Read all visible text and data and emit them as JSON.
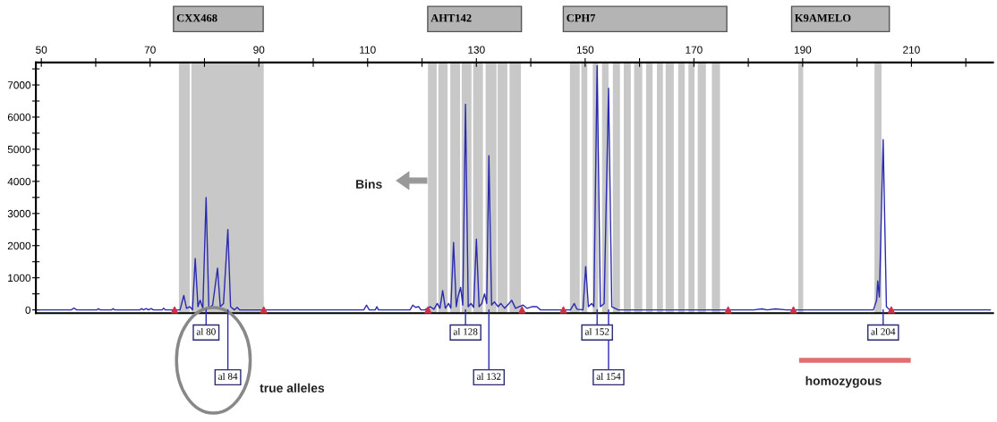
{
  "chart_data": {
    "type": "line",
    "xlim": [
      49,
      225
    ],
    "ylim": [
      -100,
      7700
    ],
    "xticks": [
      50,
      {
        "value": 60,
        "label": null
      },
      70,
      {
        "value": 80,
        "label": null
      },
      90,
      {
        "value": 100,
        "label": null
      },
      110,
      {
        "value": 120,
        "label": null
      },
      130,
      {
        "value": 140,
        "label": null
      },
      150,
      {
        "value": 160,
        "label": null
      },
      170,
      {
        "value": 180,
        "label": null
      },
      190,
      {
        "value": 200,
        "label": null
      },
      210,
      {
        "value": 220,
        "label": null
      }
    ],
    "yticks": [
      0,
      {
        "value": 500,
        "label": null
      },
      1000,
      {
        "value": 1500,
        "label": null
      },
      2000,
      {
        "value": 2500,
        "label": null
      },
      3000,
      {
        "value": 3500,
        "label": null
      },
      4000,
      {
        "value": 4500,
        "label": null
      },
      5000,
      {
        "value": 5500,
        "label": null
      },
      6000,
      {
        "value": 6500,
        "label": null
      },
      7000,
      {
        "value": 7500,
        "label": null
      }
    ],
    "grid": false,
    "legend": false,
    "series": [
      {
        "color": "#2a2ab0",
        "x": [
          49.5,
          55.5,
          56.0,
          56.5,
          60.2,
          60.5,
          60.8,
          62.9,
          63.2,
          63.5,
          68.1,
          68.4,
          68.8,
          69.3,
          69.7,
          70.2,
          70.6,
          72.2,
          72.5,
          72.8,
          75.5,
          76.2,
          76.7,
          77.3,
          77.8,
          78.3,
          78.8,
          79.2,
          79.7,
          80.3,
          80.8,
          81.5,
          82.4,
          82.9,
          83.5,
          84.3,
          84.8,
          85.5,
          86.0,
          86.5,
          109.3,
          109.8,
          110.3,
          111.4,
          111.7,
          112.0,
          117.8,
          118.3,
          118.8,
          119.4,
          119.8,
          120.5,
          121.5,
          122.2,
          122.8,
          123.3,
          123.8,
          124.3,
          124.9,
          125.3,
          125.8,
          126.3,
          126.6,
          127.1,
          127.5,
          128.0,
          128.5,
          129.0,
          129.5,
          130.0,
          130.5,
          131.0,
          131.5,
          131.9,
          132.3,
          132.8,
          133.3,
          134.0,
          134.5,
          135.2,
          136.0,
          136.5,
          137.2,
          137.8,
          138.6,
          139.3,
          140.2,
          141.1,
          141.8,
          147.3,
          148.0,
          148.5,
          149.6,
          150.1,
          150.6,
          151.2,
          151.6,
          152.2,
          152.8,
          153.5,
          154.3,
          154.9,
          155.5,
          156.1,
          181.0,
          182.5,
          183.5,
          185.0,
          187.0,
          203.0,
          203.6,
          203.8,
          204.1,
          204.8,
          205.4,
          206.0,
          224.5
        ],
        "values": [
          0,
          0,
          60,
          0,
          0,
          40,
          0,
          0,
          40,
          0,
          0,
          40,
          0,
          40,
          0,
          40,
          0,
          0,
          50,
          0,
          0,
          450,
          50,
          100,
          0,
          1600,
          100,
          300,
          50,
          3500,
          50,
          150,
          1300,
          100,
          200,
          2500,
          100,
          0,
          80,
          0,
          0,
          150,
          0,
          0,
          100,
          0,
          0,
          150,
          80,
          100,
          0,
          0,
          100,
          20,
          200,
          50,
          600,
          50,
          200,
          50,
          2100,
          100,
          400,
          700,
          150,
          6400,
          100,
          200,
          80,
          2200,
          100,
          200,
          500,
          200,
          4800,
          150,
          250,
          100,
          200,
          50,
          200,
          300,
          50,
          100,
          150,
          50,
          100,
          100,
          0,
          0,
          200,
          20,
          0,
          1350,
          100,
          200,
          100,
          7600,
          100,
          200,
          6900,
          100,
          50,
          0,
          0,
          30,
          0,
          30,
          0,
          0,
          300,
          900,
          400,
          5300,
          100,
          0,
          0
        ]
      },
      {
        "type": "scatter",
        "color": "#cc3344",
        "marker": "triangle",
        "x": [
          74.5,
          90.9,
          121.1,
          138.4,
          146.0,
          176.3,
          188.3,
          206.3
        ],
        "values": [
          0,
          0,
          0,
          0,
          0,
          0,
          0,
          0
        ]
      }
    ],
    "bands": [
      {
        "axis": "x",
        "from": 75.3,
        "to": 77.3,
        "color": "#c8c8c8"
      },
      {
        "axis": "x",
        "from": 77.6,
        "to": 90.9,
        "color": "#c8c8c8"
      },
      {
        "axis": "x",
        "from": 121.1,
        "to": 122.7,
        "color": "#c8c8c8"
      },
      {
        "axis": "x",
        "from": 123.0,
        "to": 124.7,
        "color": "#c8c8c8"
      },
      {
        "axis": "x",
        "from": 125.2,
        "to": 127.0,
        "color": "#c8c8c8"
      },
      {
        "axis": "x",
        "from": 127.3,
        "to": 129.1,
        "color": "#c8c8c8"
      },
      {
        "axis": "x",
        "from": 129.4,
        "to": 131.2,
        "color": "#c8c8c8"
      },
      {
        "axis": "x",
        "from": 131.7,
        "to": 133.7,
        "color": "#c8c8c8"
      },
      {
        "axis": "x",
        "from": 133.9,
        "to": 135.7,
        "color": "#c8c8c8"
      },
      {
        "axis": "x",
        "from": 136.1,
        "to": 138.2,
        "color": "#c8c8c8"
      },
      {
        "axis": "x",
        "from": 147.2,
        "to": 149.0,
        "color": "#c8c8c8"
      },
      {
        "axis": "x",
        "from": 149.3,
        "to": 150.4,
        "color": "#c8c8c8"
      },
      {
        "axis": "x",
        "from": 151.4,
        "to": 152.4,
        "color": "#c8c8c8"
      },
      {
        "axis": "x",
        "from": 153.1,
        "to": 154.3,
        "color": "#c8c8c8"
      },
      {
        "axis": "x",
        "from": 155.1,
        "to": 156.4,
        "color": "#c8c8c8"
      },
      {
        "axis": "x",
        "from": 157.1,
        "to": 158.4,
        "color": "#c8c8c8"
      },
      {
        "axis": "x",
        "from": 159.0,
        "to": 160.5,
        "color": "#c8c8c8"
      },
      {
        "axis": "x",
        "from": 161.2,
        "to": 162.4,
        "color": "#c8c8c8"
      },
      {
        "axis": "x",
        "from": 163.2,
        "to": 164.3,
        "color": "#c8c8c8"
      },
      {
        "axis": "x",
        "from": 164.8,
        "to": 166.3,
        "color": "#c8c8c8"
      },
      {
        "axis": "x",
        "from": 167.1,
        "to": 168.3,
        "color": "#c8c8c8"
      },
      {
        "axis": "x",
        "from": 169.0,
        "to": 170.1,
        "color": "#c8c8c8"
      },
      {
        "axis": "x",
        "from": 170.7,
        "to": 172.2,
        "color": "#c8c8c8"
      },
      {
        "axis": "x",
        "from": 173.3,
        "to": 174.8,
        "color": "#c8c8c8"
      },
      {
        "axis": "x",
        "from": 189.2,
        "to": 190.1,
        "color": "#c8c8c8"
      },
      {
        "axis": "x",
        "from": 203.2,
        "to": 204.5,
        "color": "#c8c8c8"
      }
    ],
    "annotations": [
      "CXX468",
      "AHT142",
      "CPH7",
      "K9AMELO",
      {
        "text": "al 80",
        "x": 80.3,
        "y": 0
      },
      {
        "text": "al 84",
        "x": 84.3,
        "y": 0
      },
      {
        "text": "al 128",
        "x": 128.0,
        "y": 0
      },
      {
        "text": "al 132",
        "x": 132.3,
        "y": 0
      },
      {
        "text": "al 152",
        "x": 152.2,
        "y": 0
      },
      {
        "text": "al 154",
        "x": 154.3,
        "y": 0
      },
      {
        "text": "al 204",
        "x": 204.8,
        "y": 0
      },
      "Bins",
      "true alleles",
      "homozygous"
    ]
  }
}
